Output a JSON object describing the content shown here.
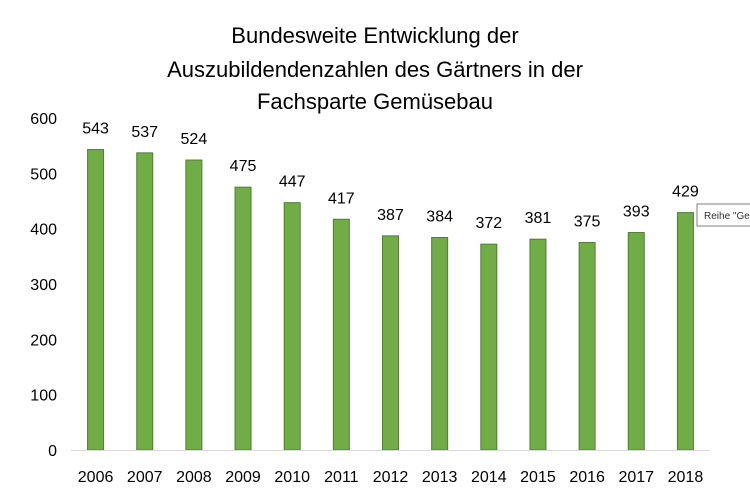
{
  "chart_data": {
    "type": "bar",
    "title": [
      "Bundesweite Entwicklung der",
      "Auszubildendenzahlen des Gärtners in der",
      "Fachsparte Gemüsebau"
    ],
    "categories": [
      "2006",
      "2007",
      "2008",
      "2009",
      "2010",
      "2011",
      "2012",
      "2013",
      "2014",
      "2015",
      "2016",
      "2017",
      "2018"
    ],
    "values": [
      543,
      537,
      524,
      475,
      447,
      417,
      387,
      384,
      372,
      381,
      375,
      393,
      429
    ],
    "ylim": [
      0,
      600
    ],
    "yticks": [
      0,
      100,
      200,
      300,
      400,
      500,
      600
    ],
    "grid": false,
    "data_labels": true,
    "legend": "none",
    "colors": {
      "bar_fill": "#70AD47",
      "bar_stroke": "#507E32",
      "axis": "#D9D9D9"
    }
  },
  "tooltip": {
    "text": "Reihe \"Ge"
  }
}
